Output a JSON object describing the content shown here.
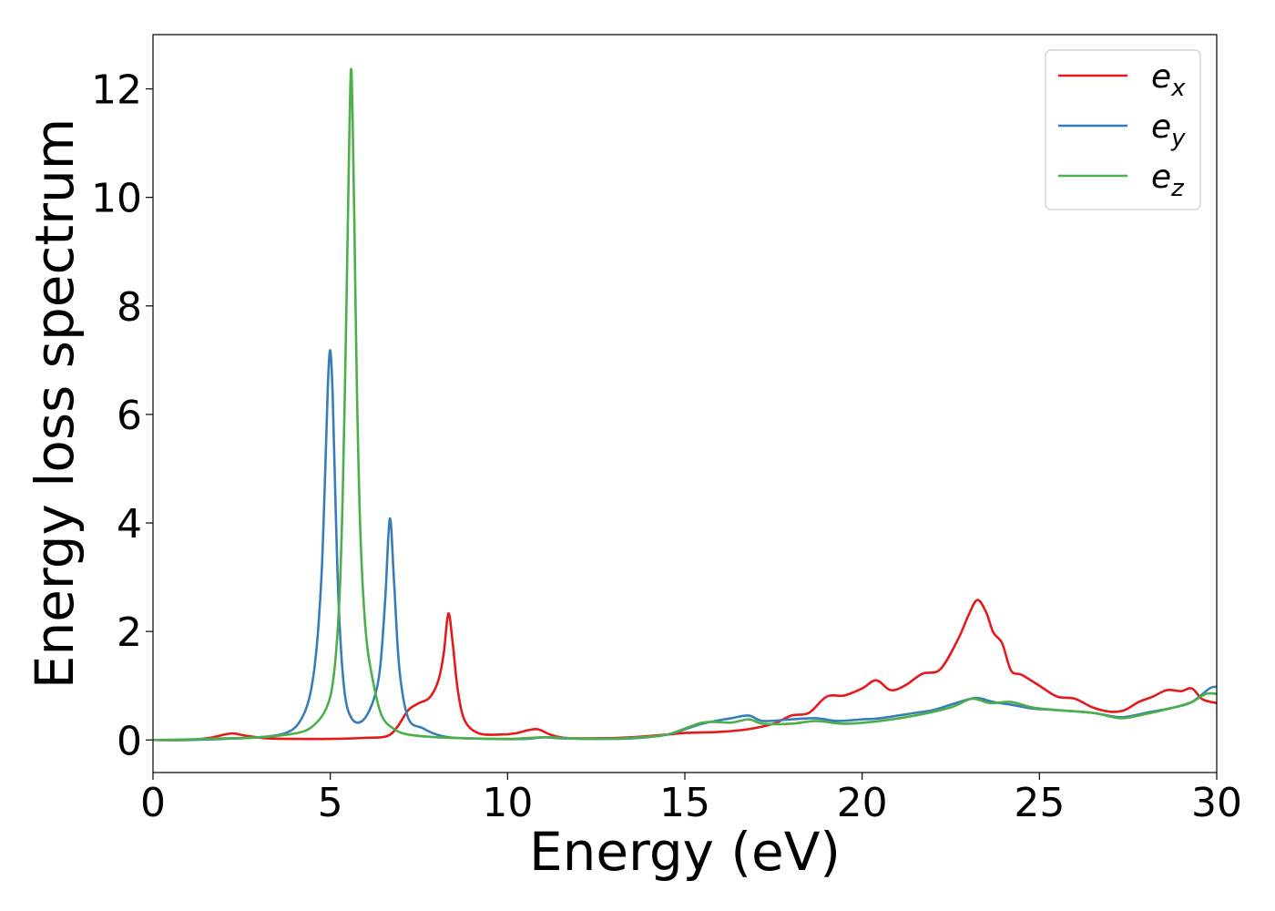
{
  "chart_data": {
    "type": "line",
    "xlabel": "Energy (eV)",
    "ylabel": "Energy loss spectrum",
    "xlim": [
      0,
      30
    ],
    "ylim": [
      -0.6,
      13
    ],
    "xticks": [
      "0",
      "5",
      "10",
      "15",
      "20",
      "25",
      "30"
    ],
    "yticks": [
      "0",
      "2",
      "4",
      "6",
      "8",
      "10",
      "12"
    ],
    "grid": false,
    "legend_position": "top-right",
    "series": [
      {
        "name": "e",
        "subscript": "x",
        "color": "#e41a1c",
        "x": [
          0,
          1,
          1.6,
          2.2,
          2.6,
          3.2,
          4,
          5,
          6,
          6.6,
          6.9,
          7.2,
          7.5,
          7.8,
          8.05,
          8.2,
          8.33,
          8.45,
          8.6,
          8.8,
          9.2,
          9.8,
          10.2,
          10.8,
          11.2,
          11.6,
          12.5,
          13.5,
          14.5,
          15,
          16,
          16.8,
          17.5,
          18,
          18.5,
          19,
          19.5,
          20,
          20.4,
          20.8,
          21.2,
          21.7,
          22.2,
          22.7,
          23.0,
          23.25,
          23.5,
          23.7,
          23.95,
          24.2,
          24.5,
          25.0,
          25.5,
          26.0,
          26.5,
          27.0,
          27.4,
          27.8,
          28.2,
          28.6,
          29.0,
          29.3,
          29.6,
          30
        ],
        "y": [
          0.0,
          0.0,
          0.04,
          0.12,
          0.08,
          0.03,
          0.02,
          0.02,
          0.04,
          0.07,
          0.25,
          0.55,
          0.68,
          0.78,
          1.1,
          1.6,
          2.33,
          1.8,
          0.9,
          0.35,
          0.12,
          0.1,
          0.12,
          0.2,
          0.1,
          0.04,
          0.03,
          0.05,
          0.1,
          0.13,
          0.15,
          0.2,
          0.3,
          0.45,
          0.5,
          0.8,
          0.82,
          0.95,
          1.1,
          0.92,
          1.0,
          1.22,
          1.3,
          1.85,
          2.3,
          2.58,
          2.35,
          1.98,
          1.78,
          1.28,
          1.2,
          1.0,
          0.8,
          0.76,
          0.6,
          0.52,
          0.55,
          0.7,
          0.8,
          0.92,
          0.9,
          0.95,
          0.75,
          0.68
        ]
      },
      {
        "name": "e",
        "subscript": "y",
        "color": "#377eb8",
        "x": [
          0,
          1,
          2,
          3,
          3.7,
          4.1,
          4.4,
          4.6,
          4.75,
          4.85,
          4.93,
          5.0,
          5.07,
          5.15,
          5.25,
          5.4,
          5.6,
          5.9,
          6.2,
          6.4,
          6.55,
          6.68,
          6.8,
          6.95,
          7.2,
          7.6,
          8.0,
          8.5,
          9.5,
          10.5,
          11.0,
          11.5,
          12.5,
          13.5,
          14.5,
          15.5,
          16.3,
          16.8,
          17.2,
          18,
          18.7,
          19.3,
          20,
          20.5,
          21.5,
          22,
          22.5,
          23.0,
          23.3,
          23.7,
          24.2,
          24.8,
          25.5,
          26.5,
          27.3,
          28,
          28.8,
          29.3,
          29.8,
          30
        ],
        "y": [
          0.0,
          0.0,
          0.02,
          0.05,
          0.12,
          0.3,
          0.75,
          1.6,
          3.0,
          4.8,
          6.5,
          7.18,
          6.3,
          4.3,
          2.3,
          0.9,
          0.4,
          0.35,
          0.7,
          1.3,
          2.6,
          4.08,
          2.9,
          1.3,
          0.4,
          0.22,
          0.1,
          0.04,
          0.02,
          0.02,
          0.05,
          0.03,
          0.02,
          0.03,
          0.1,
          0.3,
          0.4,
          0.45,
          0.35,
          0.38,
          0.4,
          0.35,
          0.38,
          0.4,
          0.5,
          0.55,
          0.65,
          0.75,
          0.77,
          0.7,
          0.65,
          0.58,
          0.55,
          0.5,
          0.42,
          0.5,
          0.6,
          0.7,
          0.95,
          0.98
        ]
      },
      {
        "name": "e",
        "subscript": "z",
        "color": "#4daf4a",
        "x": [
          0,
          1,
          2,
          3,
          4,
          4.5,
          4.9,
          5.1,
          5.25,
          5.35,
          5.45,
          5.52,
          5.58,
          5.62,
          5.68,
          5.75,
          5.85,
          6.0,
          6.2,
          6.45,
          6.8,
          7.2,
          8,
          9,
          10,
          11,
          11.5,
          12.5,
          13.5,
          14.5,
          15.5,
          16.3,
          16.8,
          17.2,
          18,
          18.7,
          19.5,
          20.5,
          21.5,
          22.5,
          23.1,
          23.6,
          24.2,
          24.8,
          25.5,
          26.5,
          27.3,
          28,
          28.8,
          29.3,
          29.7,
          30
        ],
        "y": [
          0.0,
          0.01,
          0.03,
          0.05,
          0.12,
          0.25,
          0.6,
          1.2,
          2.5,
          4.5,
          7.8,
          10.5,
          12.35,
          11.8,
          9.5,
          6.5,
          3.8,
          2.0,
          1.1,
          0.45,
          0.2,
          0.1,
          0.05,
          0.03,
          0.02,
          0.05,
          0.04,
          0.02,
          0.04,
          0.1,
          0.32,
          0.32,
          0.38,
          0.3,
          0.3,
          0.35,
          0.3,
          0.35,
          0.45,
          0.6,
          0.76,
          0.68,
          0.7,
          0.6,
          0.55,
          0.5,
          0.4,
          0.48,
          0.6,
          0.7,
          0.85,
          0.85
        ]
      }
    ]
  }
}
